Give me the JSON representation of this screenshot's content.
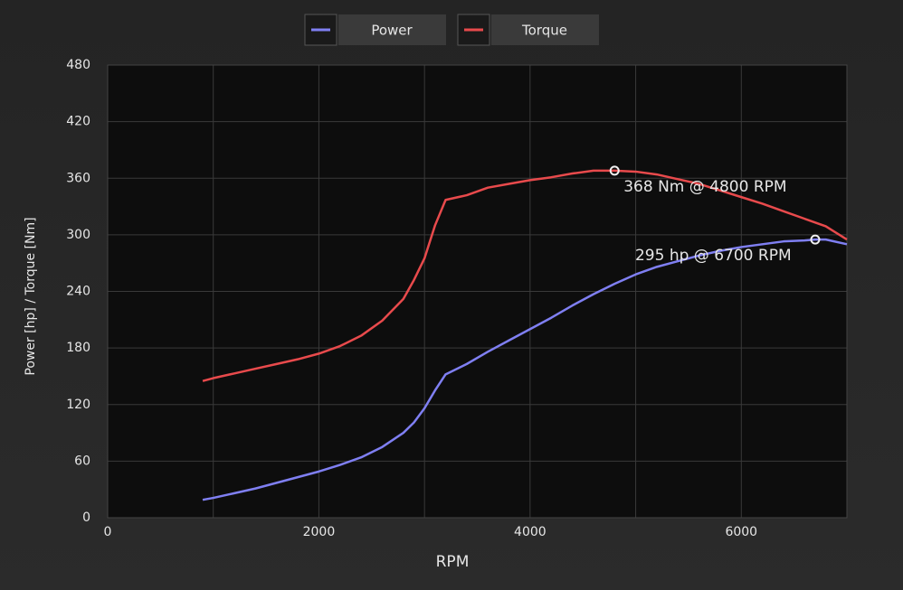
{
  "chart_data": {
    "type": "line",
    "x_label": "RPM",
    "y_label": "Power [hp] / Torque [Nm]",
    "x": [
      900,
      1000,
      1200,
      1400,
      1600,
      1800,
      2000,
      2200,
      2400,
      2600,
      2800,
      2900,
      3000,
      3100,
      3200,
      3400,
      3600,
      3800,
      4000,
      4200,
      4400,
      4600,
      4800,
      5000,
      5200,
      5400,
      5600,
      5800,
      6000,
      6200,
      6400,
      6600,
      6700,
      6800,
      7000
    ],
    "series": [
      {
        "name": "Power",
        "color": "#7f7ff2",
        "values": [
          19,
          21,
          26,
          31,
          37,
          43,
          49,
          56,
          64,
          75,
          90,
          101,
          116,
          135,
          152,
          163,
          176,
          188,
          200,
          212,
          225,
          237,
          248,
          258,
          266,
          272,
          278,
          283,
          287,
          290,
          293,
          294,
          295,
          295,
          290
        ]
      },
      {
        "name": "Torque",
        "color": "#e84a4c",
        "values": [
          145,
          148,
          153,
          158,
          163,
          168,
          174,
          182,
          193,
          209,
          232,
          252,
          275,
          310,
          337,
          342,
          350,
          354,
          358,
          361,
          365,
          368,
          368,
          367,
          364,
          359,
          354,
          347,
          340,
          333,
          325,
          317,
          313,
          309,
          295
        ]
      }
    ],
    "annotations": [
      {
        "text": "368 Nm @ 4800 RPM",
        "x": 4800,
        "y": 368
      },
      {
        "text": "295 hp @ 6700 RPM",
        "x": 6700,
        "y": 295
      }
    ],
    "xlim": [
      0,
      7000
    ],
    "xticks": [
      0,
      2000,
      4000,
      6000
    ],
    "x_minor_ticks": [
      1000,
      3000,
      5000
    ],
    "ylim": [
      0,
      480
    ],
    "yticks": [
      0,
      60,
      120,
      180,
      240,
      300,
      360,
      420,
      480
    ],
    "grid": true
  }
}
